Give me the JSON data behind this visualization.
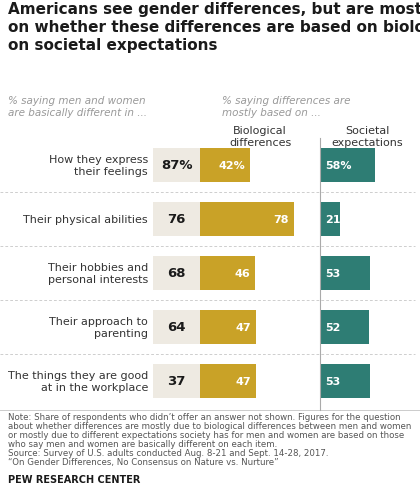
{
  "title": "Americans see gender differences, but are mostly split\non whether these differences are based on biology or\non societal expectations",
  "subtitle_left": "% saying men and women\nare basically different in ...",
  "subtitle_right": "% saying differences are\nmostly based on ...",
  "col_header_bio": "Biological\ndifferences",
  "col_header_soc": "Societal\nexpectations",
  "categories": [
    "How they express\ntheir feelings",
    "Their physical abilities",
    "Their hobbies and\npersonal interests",
    "Their approach to\nparenting",
    "The things they are good\nat in the workplace"
  ],
  "pct_different": [
    87,
    76,
    68,
    64,
    37
  ],
  "pct_bio_label": [
    "42%",
    "78",
    "46",
    "47",
    "47"
  ],
  "pct_soc_label": [
    "58%",
    "21",
    "53",
    "52",
    "53"
  ],
  "pct_biological": [
    42,
    78,
    46,
    47,
    47
  ],
  "pct_societal": [
    58,
    21,
    53,
    52,
    53
  ],
  "pct_diff_label": [
    "87%",
    "76",
    "68",
    "64",
    "37"
  ],
  "color_bio": "#C9A227",
  "color_soc": "#2E7D74",
  "color_bg_left": "#EEEAE2",
  "note_line1": "Note: Share of respondents who didn’t offer an answer not shown. Figures for the question",
  "note_line2": "about whether differences are mostly due to biological differences between men and women",
  "note_line3": "or mostly due to different expectations society has for men and women are based on those",
  "note_line4": "who say men and women are basically different on each item.",
  "note_line5": "Source: Survey of U.S. adults conducted Aug. 8-21 and Sept. 14-28, 2017.",
  "note_line6": "“On Gender Differences, No Consensus on Nature vs. Nurture”",
  "source_label": "PEW RESEARCH CENTER",
  "background_color": "#FFFFFF",
  "title_fontsize": 11,
  "subtitle_fontsize": 7.5,
  "header_fontsize": 8,
  "label_fontsize": 8,
  "num_fontsize": 9.5,
  "bar_num_fontsize": 8,
  "note_fontsize": 6.2,
  "source_fontsize": 7
}
